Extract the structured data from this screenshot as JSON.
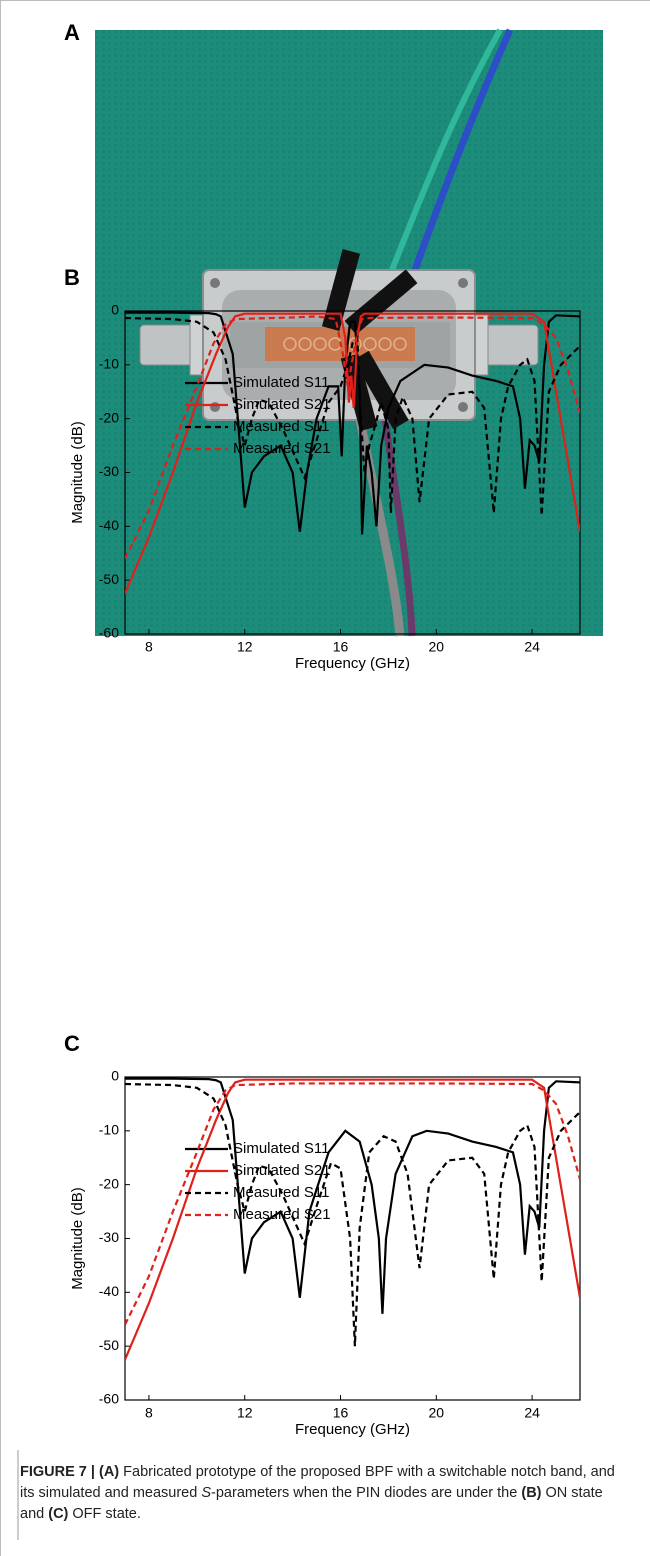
{
  "panel_a": {
    "label": "A"
  },
  "chart_data": [
    {
      "type": "line",
      "panel_label": "B",
      "x_label": "Frequency (GHz)",
      "y_label": "Magnitude (dB)",
      "xlim": [
        7,
        26
      ],
      "xticks": [
        8,
        12,
        16,
        20,
        24
      ],
      "ylim": [
        -60,
        0
      ],
      "yticks": [
        0,
        -10,
        -20,
        -30,
        -40,
        -50,
        -60
      ],
      "series": [
        {
          "name": "Simulated S11",
          "color": "#000000",
          "dash": false,
          "x": [
            7,
            9,
            10.5,
            10.8,
            11,
            11.5,
            11.8,
            12,
            12.3,
            12.8,
            13.5,
            14,
            14.3,
            14.6,
            15,
            15.5,
            15.9,
            16.05,
            16.2,
            16.4,
            16.6,
            16.8,
            16.9,
            17.1,
            17.3,
            17.5,
            17.7,
            18,
            18.5,
            19.5,
            20.5,
            21.5,
            22.5,
            23.2,
            23.5,
            23.7,
            23.9,
            24.1,
            24.3,
            24.5,
            24.7,
            25,
            26
          ],
          "values": [
            -0.3,
            -0.3,
            -0.4,
            -0.6,
            -1,
            -8,
            -25,
            -36.5,
            -30,
            -27,
            -25,
            -30,
            -41,
            -30,
            -20,
            -14,
            -14,
            -27,
            -10,
            -2,
            -2,
            -15,
            -41.5,
            -25,
            -30,
            -40,
            -25,
            -18,
            -13,
            -10,
            -10.5,
            -12,
            -13,
            -14,
            -20,
            -33,
            -24,
            -25,
            -28,
            -10,
            -2,
            -0.8,
            -1
          ]
        },
        {
          "name": "Simulated S21",
          "color": "#e0201b",
          "dash": false,
          "x": [
            7,
            8,
            9,
            10,
            10.8,
            11.3,
            11.6,
            12,
            16,
            16.2,
            16.35,
            16.45,
            16.55,
            16.7,
            16.85,
            17,
            24,
            24.5,
            25,
            25.5,
            26
          ],
          "values": [
            -52.5,
            -42,
            -30,
            -17,
            -8,
            -3,
            -1,
            -0.5,
            -0.5,
            -5,
            -17,
            -12,
            -18,
            -5,
            -1,
            -0.5,
            -0.5,
            -2,
            -15,
            -28,
            -41
          ]
        },
        {
          "name": "Measured S11",
          "color": "#000000",
          "dash": true,
          "x": [
            7,
            9,
            10,
            10.7,
            11.2,
            11.7,
            12,
            12.3,
            12.6,
            13,
            13.6,
            14.2,
            14.5,
            15,
            15.5,
            16,
            16.3,
            16.5,
            16.7,
            16.85,
            17,
            17.2,
            17.4,
            17.7,
            18,
            18.1,
            18.3,
            18.6,
            19,
            19.3,
            19.7,
            20.5,
            21.5,
            22,
            22.4,
            22.7,
            23,
            23.5,
            23.8,
            24.1,
            24.4,
            24.7,
            25.2,
            26
          ],
          "values": [
            -1.3,
            -1.5,
            -2,
            -4,
            -9,
            -20,
            -25,
            -20,
            -16.5,
            -17,
            -22,
            -28,
            -31,
            -24,
            -17,
            -14,
            -10,
            -6,
            -5,
            -20,
            -30,
            -25,
            -22,
            -17,
            -22,
            -37.5,
            -20,
            -16,
            -20,
            -35.5,
            -20,
            -15.5,
            -15,
            -18,
            -37.5,
            -20,
            -14,
            -10,
            -9,
            -13,
            -38,
            -15,
            -10,
            -6.5
          ]
        },
        {
          "name": "Measured S21",
          "color": "#e0201b",
          "dash": true,
          "x": [
            7,
            8,
            9,
            10,
            10.7,
            11.2,
            11.6,
            14,
            15,
            15.8,
            16.1,
            16.3,
            16.5,
            16.7,
            16.9,
            17.2,
            20,
            24,
            24.5,
            25,
            25.5,
            26
          ],
          "values": [
            -46,
            -37,
            -25,
            -14,
            -6,
            -2.5,
            -1.5,
            -1.2,
            -1,
            -1.5,
            -8,
            -14,
            -9,
            -4,
            -1.5,
            -1.3,
            -1.2,
            -1.3,
            -2.5,
            -5,
            -11,
            -19
          ]
        }
      ]
    },
    {
      "type": "line",
      "panel_label": "C",
      "x_label": "Frequency (GHz)",
      "y_label": "Magnitude (dB)",
      "xlim": [
        7,
        26
      ],
      "xticks": [
        8,
        12,
        16,
        20,
        24
      ],
      "ylim": [
        -60,
        0
      ],
      "yticks": [
        0,
        -10,
        -20,
        -30,
        -40,
        -50,
        -60
      ],
      "series": [
        {
          "name": "Simulated S11",
          "color": "#000000",
          "dash": false,
          "x": [
            7,
            9,
            10.5,
            10.8,
            11,
            11.5,
            11.8,
            12,
            12.3,
            12.8,
            13.5,
            14,
            14.3,
            14.7,
            15.5,
            16.2,
            16.8,
            17.3,
            17.6,
            17.75,
            17.9,
            18.3,
            19,
            19.6,
            20.5,
            21.5,
            22.5,
            23.2,
            23.5,
            23.7,
            23.9,
            24.1,
            24.3,
            24.5,
            24.7,
            25,
            26
          ],
          "values": [
            -0.3,
            -0.3,
            -0.4,
            -0.6,
            -1,
            -8,
            -25,
            -36.5,
            -30,
            -27,
            -25,
            -30,
            -41,
            -25,
            -14,
            -10,
            -12,
            -20,
            -30,
            -44,
            -30,
            -18,
            -11,
            -10,
            -10.5,
            -12,
            -13,
            -14,
            -20,
            -33,
            -24,
            -25,
            -28,
            -10,
            -2,
            -0.8,
            -1
          ]
        },
        {
          "name": "Simulated S21",
          "color": "#e0201b",
          "dash": false,
          "x": [
            7,
            8,
            9,
            10,
            10.8,
            11.3,
            11.6,
            12,
            24,
            24.5,
            25,
            25.5,
            26
          ],
          "values": [
            -52.5,
            -42,
            -30,
            -17,
            -8,
            -3,
            -1,
            -0.5,
            -0.5,
            -2,
            -15,
            -28,
            -41
          ]
        },
        {
          "name": "Measured S11",
          "color": "#000000",
          "dash": true,
          "x": [
            7,
            9,
            10,
            10.7,
            11.2,
            11.7,
            12,
            12.3,
            12.6,
            13,
            13.6,
            14.2,
            14.5,
            15,
            15.6,
            16,
            16.4,
            16.6,
            16.8,
            17.2,
            17.8,
            18.3,
            18.8,
            19.3,
            19.7,
            20.5,
            21.5,
            22,
            22.4,
            22.7,
            23,
            23.5,
            23.8,
            24.1,
            24.4,
            24.7,
            25.2,
            26
          ],
          "values": [
            -1.3,
            -1.5,
            -2,
            -4,
            -9,
            -20,
            -25,
            -20,
            -16.5,
            -17,
            -22,
            -28,
            -31,
            -24,
            -16,
            -17,
            -30,
            -50,
            -28,
            -14,
            -11,
            -12,
            -18,
            -35.5,
            -20,
            -15.5,
            -15,
            -18,
            -37.5,
            -20,
            -14,
            -10,
            -9,
            -13,
            -38,
            -15,
            -10,
            -6.5
          ]
        },
        {
          "name": "Measured S21",
          "color": "#e0201b",
          "dash": true,
          "x": [
            7,
            8,
            9,
            10,
            10.7,
            11.2,
            11.6,
            14,
            20,
            24,
            24.5,
            25,
            25.5,
            26
          ],
          "values": [
            -46,
            -37,
            -25,
            -14,
            -6,
            -2.5,
            -1.5,
            -1.2,
            -1.2,
            -1.3,
            -2.5,
            -5,
            -11,
            -19
          ]
        }
      ]
    }
  ],
  "caption": [
    "FIGURE 7 |",
    "(A)",
    "Fabricated prototype of the proposed BPF with a switchable notch band, and its simulated and measured",
    "S",
    "-parameters when the PIN diodes are under the",
    "(B)",
    "ON state and",
    "(C)",
    "OFF state."
  ]
}
